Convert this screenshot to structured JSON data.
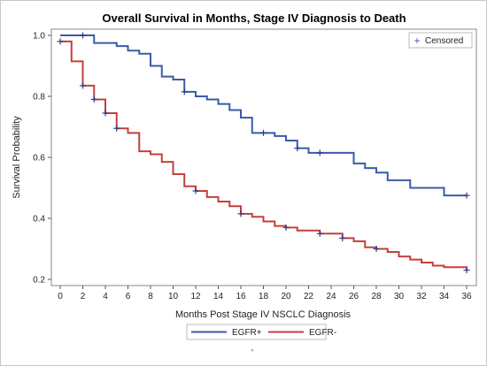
{
  "chart_data": {
    "type": "line",
    "title": "Overall Survival in Months, Stage IV Diagnosis to Death",
    "xlabel": "Months Post Stage IV NSCLC Diagnosis",
    "ylabel": "Survival Probability",
    "xlim": [
      0,
      36
    ],
    "ylim": [
      0.2,
      1.0
    ],
    "xticks": [
      0,
      2,
      4,
      6,
      8,
      10,
      12,
      14,
      16,
      18,
      20,
      22,
      24,
      26,
      28,
      30,
      32,
      34,
      36
    ],
    "yticks": [
      0.2,
      0.4,
      0.6,
      0.8,
      1.0
    ],
    "ytick_labels": [
      "0.2",
      "0.4",
      "0.6",
      "0.8",
      "1.0"
    ],
    "step": true,
    "grid": false,
    "inset_legend": {
      "marker": "+",
      "label": "Censored",
      "placement": "top-right"
    },
    "legend_placement": "bottom",
    "series": [
      {
        "name": "EGFR+",
        "color": "#3a5ba9",
        "steps": [
          [
            0,
            1.0
          ],
          [
            3,
            0.975
          ],
          [
            5,
            0.965
          ],
          [
            6,
            0.95
          ],
          [
            7,
            0.94
          ],
          [
            8,
            0.9
          ],
          [
            9,
            0.865
          ],
          [
            10,
            0.855
          ],
          [
            11,
            0.815
          ],
          [
            12,
            0.8
          ],
          [
            13,
            0.79
          ],
          [
            14,
            0.775
          ],
          [
            15,
            0.755
          ],
          [
            16,
            0.73
          ],
          [
            17,
            0.68
          ],
          [
            19,
            0.67
          ],
          [
            20,
            0.655
          ],
          [
            21,
            0.63
          ],
          [
            22,
            0.615
          ],
          [
            26,
            0.58
          ],
          [
            27,
            0.565
          ],
          [
            28,
            0.55
          ],
          [
            29,
            0.525
          ],
          [
            31,
            0.5
          ],
          [
            34,
            0.475
          ],
          [
            36,
            0.475
          ]
        ],
        "censored": [
          [
            2,
            1.0
          ],
          [
            11,
            0.815
          ],
          [
            18,
            0.68
          ],
          [
            21,
            0.63
          ],
          [
            23,
            0.615
          ],
          [
            36,
            0.475
          ]
        ]
      },
      {
        "name": "EGFR-",
        "color": "#c3403c",
        "steps": [
          [
            0,
            0.98
          ],
          [
            1,
            0.915
          ],
          [
            2,
            0.835
          ],
          [
            3,
            0.79
          ],
          [
            4,
            0.745
          ],
          [
            5,
            0.695
          ],
          [
            6,
            0.68
          ],
          [
            7,
            0.62
          ],
          [
            8,
            0.61
          ],
          [
            9,
            0.585
          ],
          [
            10,
            0.545
          ],
          [
            11,
            0.505
          ],
          [
            12,
            0.49
          ],
          [
            13,
            0.47
          ],
          [
            14,
            0.455
          ],
          [
            15,
            0.44
          ],
          [
            16,
            0.415
          ],
          [
            17,
            0.405
          ],
          [
            18,
            0.39
          ],
          [
            19,
            0.375
          ],
          [
            20,
            0.37
          ],
          [
            21,
            0.36
          ],
          [
            23,
            0.35
          ],
          [
            25,
            0.335
          ],
          [
            26,
            0.325
          ],
          [
            27,
            0.305
          ],
          [
            28,
            0.3
          ],
          [
            29,
            0.29
          ],
          [
            30,
            0.275
          ],
          [
            31,
            0.265
          ],
          [
            32,
            0.255
          ],
          [
            33,
            0.245
          ],
          [
            34,
            0.24
          ],
          [
            36,
            0.23
          ]
        ],
        "censored": [
          [
            0,
            0.98
          ],
          [
            2,
            0.835
          ],
          [
            3,
            0.79
          ],
          [
            4,
            0.745
          ],
          [
            5,
            0.695
          ],
          [
            12,
            0.49
          ],
          [
            16,
            0.415
          ],
          [
            20,
            0.37
          ],
          [
            23,
            0.35
          ],
          [
            25,
            0.335
          ],
          [
            28,
            0.3
          ],
          [
            36,
            0.23
          ]
        ]
      }
    ]
  },
  "footer_mark": "'"
}
